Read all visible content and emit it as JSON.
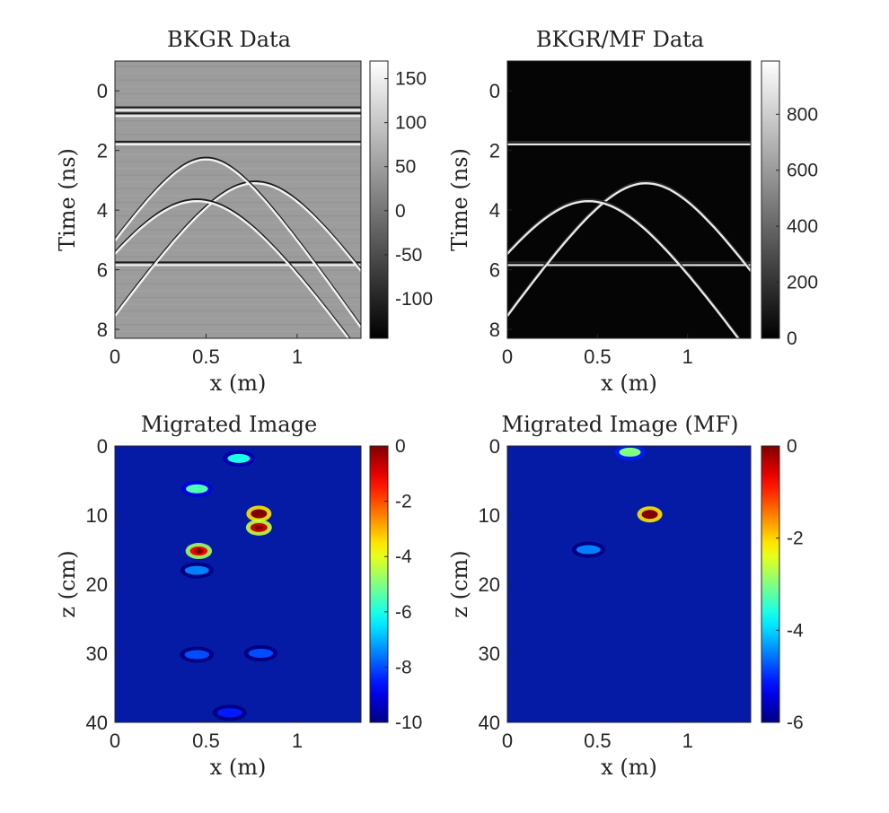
{
  "chart_data": [
    {
      "type": "heatmap",
      "title": "BKGR Data",
      "xlabel": "x (m)",
      "ylabel": "Time (ns)",
      "xlim": [
        0,
        1.35
      ],
      "ylim": [
        -1.0,
        8.3
      ],
      "y_reversed": true,
      "xticks": [
        0,
        0.5,
        1
      ],
      "xtick_labels": [
        "0",
        "0.5",
        "1"
      ],
      "yticks": [
        0,
        2,
        4,
        6,
        8
      ],
      "ytick_labels": [
        "0",
        "2",
        "4",
        "6",
        "8"
      ],
      "colormap": "gray",
      "clim": [
        -145,
        170
      ],
      "colorbar_ticks": [
        150,
        100,
        50,
        0,
        -50,
        -100
      ],
      "colorbar_tick_labels": [
        "150",
        "100",
        "50",
        "0",
        "-50",
        "-100"
      ],
      "features": {
        "horizontal_reflectors_ns": [
          0.6,
          0.8,
          1.75,
          5.8
        ],
        "hyperbolas": [
          {
            "apex_x": 0.77,
            "apex_t": 3.1
          },
          {
            "apex_x": 0.45,
            "apex_t": 3.7
          },
          {
            "apex_x": 0.5,
            "apex_t": 2.3
          }
        ]
      }
    },
    {
      "type": "heatmap",
      "title": "BKGR/MF Data",
      "xlabel": "x (m)",
      "ylabel": "Time (ns)",
      "xlim": [
        0,
        1.35
      ],
      "ylim": [
        -1.0,
        8.3
      ],
      "y_reversed": true,
      "xticks": [
        0,
        0.5,
        1
      ],
      "xtick_labels": [
        "0",
        "0.5",
        "1"
      ],
      "yticks": [
        0,
        2,
        4,
        6,
        8
      ],
      "ytick_labels": [
        "0",
        "2",
        "4",
        "6",
        "8"
      ],
      "colormap": "gray",
      "clim": [
        0,
        990
      ],
      "colorbar_ticks": [
        800,
        600,
        400,
        200,
        0
      ],
      "colorbar_tick_labels": [
        "800",
        "600",
        "400",
        "200",
        "0"
      ],
      "features": {
        "horizontal_reflectors_ns": [
          1.75,
          5.8
        ],
        "hyperbolas": [
          {
            "apex_x": 0.77,
            "apex_t": 3.1
          },
          {
            "apex_x": 0.45,
            "apex_t": 3.7
          }
        ]
      }
    },
    {
      "type": "heatmap",
      "title": "Migrated Image",
      "xlabel": "x (m)",
      "ylabel": "z (cm)",
      "xlim": [
        0,
        1.35
      ],
      "ylim": [
        0,
        40
      ],
      "y_reversed": true,
      "xticks": [
        0,
        0.5,
        1
      ],
      "xtick_labels": [
        "0",
        "0.5",
        "1"
      ],
      "yticks": [
        0,
        10,
        20,
        30,
        40
      ],
      "ytick_labels": [
        "0",
        "10",
        "20",
        "30",
        "40"
      ],
      "colormap": "jet",
      "clim": [
        -10,
        0
      ],
      "colorbar_ticks": [
        0,
        -2,
        -4,
        -6,
        -8,
        -10
      ],
      "colorbar_tick_labels": [
        "0",
        "-2",
        "-4",
        "-6",
        "-8",
        "-10"
      ],
      "hotspots": [
        {
          "x": 0.79,
          "z": 9.8,
          "level": 0
        },
        {
          "x": 0.79,
          "z": 11.8,
          "level": -0.8
        },
        {
          "x": 0.46,
          "z": 15.2,
          "level": -1.2
        },
        {
          "x": 0.45,
          "z": 6.2,
          "level": -5.5
        },
        {
          "x": 0.68,
          "z": 1.8,
          "level": -6.0
        },
        {
          "x": 0.45,
          "z": 18.0,
          "level": -7.5
        },
        {
          "x": 0.45,
          "z": 30.2,
          "level": -8.0
        },
        {
          "x": 0.8,
          "z": 30.0,
          "level": -8.0
        },
        {
          "x": 0.63,
          "z": 38.6,
          "level": -8.5
        }
      ]
    },
    {
      "type": "heatmap",
      "title": "Migrated Image (MF)",
      "xlabel": "x (m)",
      "ylabel": "z (cm)",
      "xlim": [
        0,
        1.35
      ],
      "ylim": [
        0,
        40
      ],
      "y_reversed": true,
      "xticks": [
        0,
        0.5,
        1
      ],
      "xtick_labels": [
        "0",
        "0.5",
        "1"
      ],
      "yticks": [
        0,
        10,
        20,
        30,
        40
      ],
      "ytick_labels": [
        "0",
        "10",
        "20",
        "30",
        "40"
      ],
      "colormap": "jet",
      "clim": [
        -6,
        0
      ],
      "colorbar_ticks": [
        0,
        -2,
        -4,
        -6
      ],
      "colorbar_tick_labels": [
        "0",
        "-2",
        "-4",
        "-6"
      ],
      "hotspots": [
        {
          "x": 0.79,
          "z": 9.9,
          "level": 0
        },
        {
          "x": 0.68,
          "z": 0.9,
          "level": -3.0
        },
        {
          "x": 0.45,
          "z": 15.0,
          "level": -4.5
        }
      ]
    }
  ]
}
